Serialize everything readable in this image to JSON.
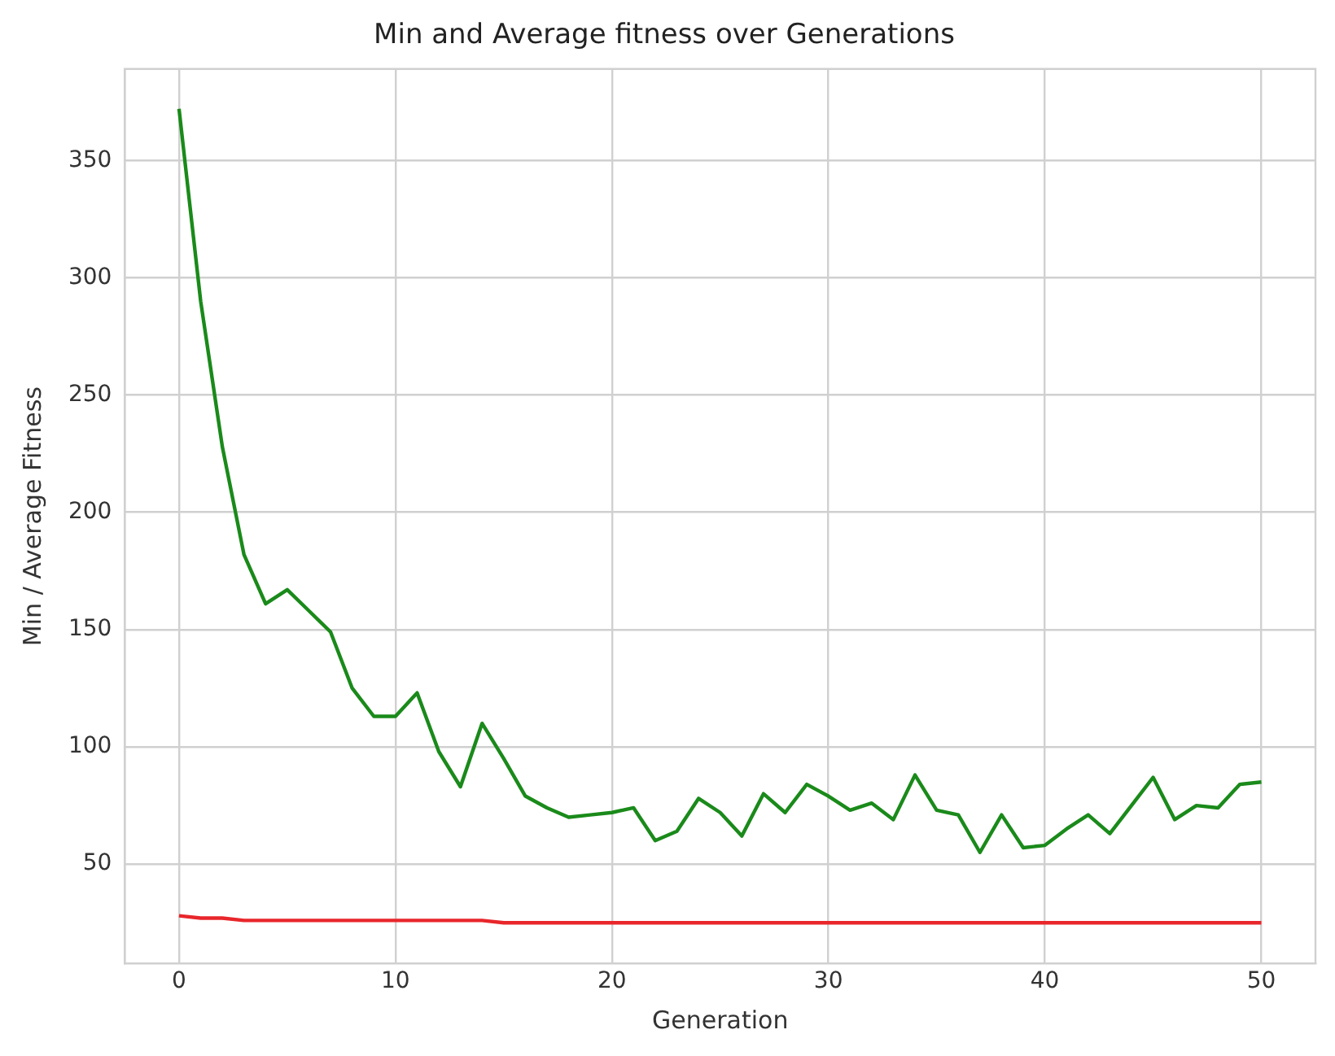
{
  "chart_data": {
    "type": "line",
    "title": "Min and Average fitness over Generations",
    "xlabel": "Generation",
    "ylabel": "Min / Average Fitness",
    "x": [
      0,
      1,
      2,
      3,
      4,
      5,
      6,
      7,
      8,
      9,
      10,
      11,
      12,
      13,
      14,
      15,
      16,
      17,
      18,
      19,
      20,
      21,
      22,
      23,
      24,
      25,
      26,
      27,
      28,
      29,
      30,
      31,
      32,
      33,
      34,
      35,
      36,
      37,
      38,
      39,
      40,
      41,
      42,
      43,
      44,
      45,
      46,
      47,
      48,
      49,
      50
    ],
    "series": [
      {
        "color": "#e8262b",
        "values": [
          28,
          27,
          27,
          26,
          26,
          26,
          26,
          26,
          26,
          26,
          26,
          26,
          26,
          26,
          26,
          25,
          25,
          25,
          25,
          25,
          25,
          25,
          25,
          25,
          25,
          25,
          25,
          25,
          25,
          25,
          25,
          25,
          25,
          25,
          25,
          25,
          25,
          25,
          25,
          25,
          25,
          25,
          25,
          25,
          25,
          25,
          25,
          25,
          25,
          25,
          25
        ]
      },
      {
        "color": "#1a8a1a",
        "values": [
          372,
          290,
          228,
          182,
          161,
          167,
          158,
          149,
          125,
          113,
          113,
          123,
          98,
          83,
          110,
          95,
          79,
          74,
          70,
          71,
          72,
          74,
          60,
          64,
          78,
          72,
          62,
          80,
          72,
          84,
          79,
          73,
          76,
          69,
          88,
          73,
          71,
          55,
          71,
          57,
          58,
          65,
          71,
          63,
          75,
          87,
          69,
          75,
          74,
          84,
          85
        ]
      }
    ],
    "xlim": [
      -2.5,
      52.5
    ],
    "xticks": [
      0,
      10,
      20,
      30,
      40,
      50
    ],
    "ylim": [
      7.6,
      389
    ],
    "yticks": [
      50,
      100,
      150,
      200,
      250,
      300,
      350
    ],
    "grid": true,
    "line_style": "solid",
    "marker": "none"
  }
}
